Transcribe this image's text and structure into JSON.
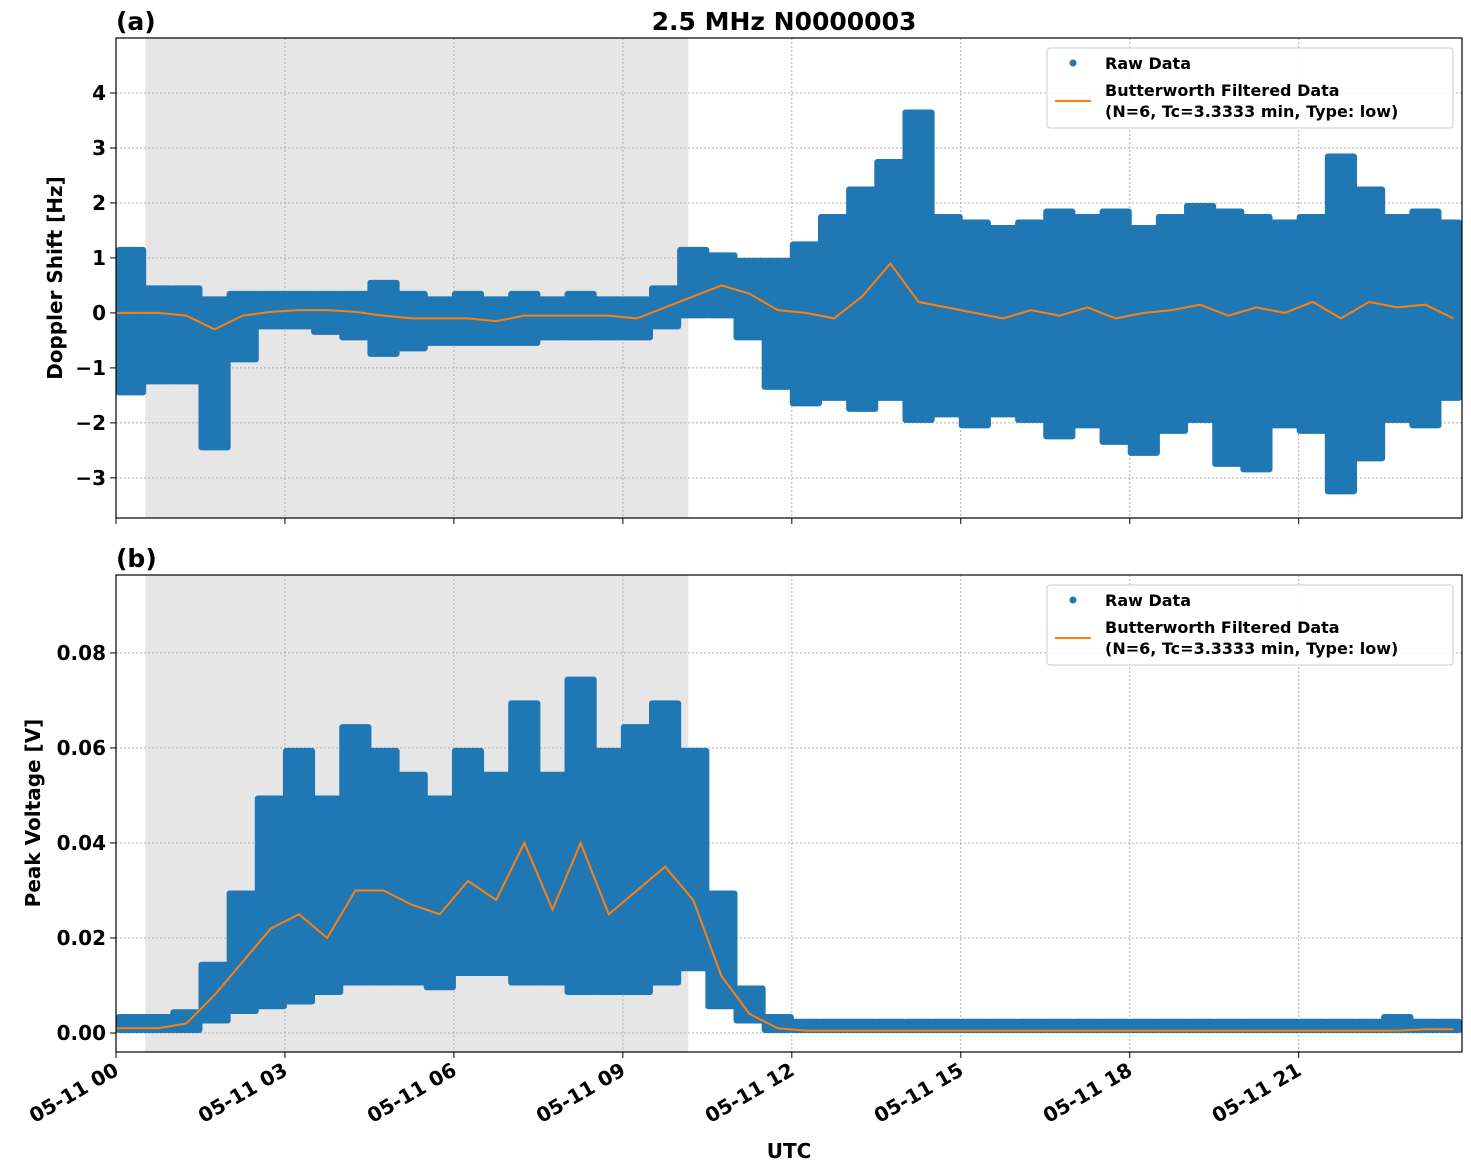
{
  "title": "2.5 MHz N0000003",
  "colors": {
    "raw": "#1f77b4",
    "filtered": "#ff7f0e",
    "shade": "#e6e6e6"
  },
  "chart_data": [
    {
      "type": "scatter",
      "panel_label": "(a)",
      "ylabel": "Doppler Shift [Hz]",
      "xlabel": "",
      "ylim": [
        -3.73,
        5.0
      ],
      "yticks": [
        -3,
        -2,
        -1,
        0,
        1,
        2,
        3,
        4
      ],
      "ytick_labels": [
        "−3",
        "−2",
        "−1",
        "0",
        "1",
        "2",
        "3",
        "4"
      ],
      "xlim_hours": [
        0,
        23.9
      ],
      "xticks_hours": [
        0,
        3,
        6,
        9,
        12,
        15,
        18,
        21
      ],
      "shaded_interval_hours": [
        0.52,
        10.16
      ],
      "grid": true,
      "legend_placement": "top-right",
      "legend": [
        "Raw Data",
        "Butterworth Filtered Data\n(N=6, Tc=3.3333 min, Type: low)"
      ],
      "hours": [
        0,
        0.5,
        1,
        1.5,
        2,
        2.5,
        3,
        3.5,
        4,
        4.5,
        5,
        5.5,
        6,
        6.5,
        7,
        7.5,
        8,
        8.5,
        9,
        9.5,
        10,
        10.5,
        11,
        11.5,
        12,
        12.5,
        13,
        13.5,
        14,
        14.5,
        15,
        15.5,
        16,
        16.5,
        17,
        17.5,
        18,
        18.5,
        19,
        19.5,
        20,
        20.5,
        21,
        21.5,
        22,
        22.5,
        23,
        23.5
      ],
      "series": [
        {
          "name": "Raw Data",
          "kind": "envelope",
          "min": [
            -1.5,
            -1.3,
            -1.3,
            -2.5,
            -0.9,
            -0.3,
            -0.3,
            -0.4,
            -0.5,
            -0.8,
            -0.7,
            -0.6,
            -0.6,
            -0.6,
            -0.6,
            -0.5,
            -0.5,
            -0.5,
            -0.5,
            -0.3,
            -0.1,
            -0.1,
            -0.5,
            -1.4,
            -1.7,
            -1.6,
            -1.8,
            -1.6,
            -2.0,
            -1.9,
            -2.1,
            -1.9,
            -2.0,
            -2.3,
            -2.1,
            -2.4,
            -2.6,
            -2.2,
            -2.0,
            -2.8,
            -2.9,
            -2.1,
            -2.2,
            -3.3,
            -2.7,
            -2.0,
            -2.1,
            -1.6
          ],
          "max": [
            1.2,
            0.5,
            0.5,
            0.3,
            0.4,
            0.4,
            0.4,
            0.4,
            0.4,
            0.6,
            0.4,
            0.3,
            0.4,
            0.3,
            0.4,
            0.3,
            0.4,
            0.3,
            0.3,
            0.5,
            1.2,
            1.1,
            1.0,
            1.0,
            1.3,
            1.8,
            2.3,
            2.8,
            3.7,
            1.8,
            1.7,
            1.6,
            1.7,
            1.9,
            1.8,
            1.9,
            1.6,
            1.8,
            2.0,
            1.9,
            1.8,
            1.7,
            1.8,
            2.9,
            2.3,
            1.8,
            1.9,
            1.7
          ]
        },
        {
          "name": "Butterworth Filtered Data (N=6, Tc=3.3333 min, Type: low)",
          "kind": "line",
          "values": [
            0,
            0,
            -0.05,
            -0.3,
            -0.05,
            0.02,
            0.05,
            0.05,
            0.02,
            -0.05,
            -0.1,
            -0.1,
            -0.1,
            -0.15,
            -0.05,
            -0.05,
            -0.05,
            -0.05,
            -0.1,
            0.1,
            0.3,
            0.5,
            0.35,
            0.05,
            0,
            -0.1,
            0.3,
            0.9,
            0.2,
            0.1,
            0.0,
            -0.1,
            0.05,
            -0.05,
            0.1,
            -0.1,
            0.0,
            0.05,
            0.15,
            -0.05,
            0.1,
            0.0,
            0.2,
            -0.1,
            0.2,
            0.1,
            0.15,
            -0.1
          ]
        }
      ]
    },
    {
      "type": "scatter",
      "panel_label": "(b)",
      "ylabel": "Peak Voltage [V]",
      "xlabel": "UTC",
      "ylim": [
        -0.004,
        0.0964
      ],
      "yticks": [
        0,
        0.02,
        0.04,
        0.06,
        0.08
      ],
      "ytick_labels": [
        "0.00",
        "0.02",
        "0.04",
        "0.06",
        "0.08"
      ],
      "xlim_hours": [
        0,
        23.9
      ],
      "xticks_hours": [
        0,
        3,
        6,
        9,
        12,
        15,
        18,
        21
      ],
      "xtick_labels": [
        "05-11 00",
        "05-11 03",
        "05-11 06",
        "05-11 09",
        "05-11 12",
        "05-11 15",
        "05-11 18",
        "05-11 21"
      ],
      "shaded_interval_hours": [
        0.52,
        10.16
      ],
      "grid": true,
      "legend_placement": "top-right",
      "legend": [
        "Raw Data",
        "Butterworth Filtered Data\n(N=6, Tc=3.3333 min, Type: low)"
      ],
      "hours": [
        0,
        0.5,
        1,
        1.5,
        2,
        2.5,
        3,
        3.5,
        4,
        4.5,
        5,
        5.5,
        6,
        6.5,
        7,
        7.5,
        8,
        8.5,
        9,
        9.5,
        10,
        10.5,
        11,
        11.5,
        12,
        12.5,
        13,
        13.5,
        14,
        14.5,
        15,
        15.5,
        16,
        16.5,
        17,
        17.5,
        18,
        18.5,
        19,
        19.5,
        20,
        20.5,
        21,
        21.5,
        22,
        22.5,
        23,
        23.5
      ],
      "series": [
        {
          "name": "Raw Data",
          "kind": "envelope",
          "min": [
            0,
            0,
            0,
            0.002,
            0.004,
            0.005,
            0.006,
            0.008,
            0.01,
            0.01,
            0.01,
            0.009,
            0.012,
            0.012,
            0.01,
            0.01,
            0.008,
            0.008,
            0.008,
            0.01,
            0.013,
            0.005,
            0.002,
            0,
            0,
            0,
            0,
            0,
            0,
            0,
            0,
            0,
            0,
            0,
            0,
            0,
            0,
            0,
            0,
            0,
            0,
            0,
            0,
            0,
            0,
            0,
            0,
            0
          ],
          "max": [
            0.004,
            0.004,
            0.005,
            0.015,
            0.03,
            0.05,
            0.06,
            0.05,
            0.065,
            0.06,
            0.055,
            0.05,
            0.06,
            0.055,
            0.07,
            0.055,
            0.075,
            0.06,
            0.065,
            0.07,
            0.06,
            0.03,
            0.01,
            0.004,
            0.003,
            0.003,
            0.003,
            0.003,
            0.003,
            0.003,
            0.003,
            0.003,
            0.003,
            0.003,
            0.003,
            0.003,
            0.003,
            0.003,
            0.003,
            0.003,
            0.003,
            0.003,
            0.003,
            0.003,
            0.003,
            0.004,
            0.003,
            0.003
          ]
        },
        {
          "name": "Butterworth Filtered Data (N=6, Tc=3.3333 min, Type: low)",
          "kind": "line",
          "values": [
            0.001,
            0.001,
            0.002,
            0.008,
            0.015,
            0.022,
            0.025,
            0.02,
            0.03,
            0.03,
            0.027,
            0.025,
            0.032,
            0.028,
            0.04,
            0.026,
            0.04,
            0.025,
            0.03,
            0.035,
            0.028,
            0.012,
            0.004,
            0.001,
            0.0005,
            0.0005,
            0.0005,
            0.0005,
            0.0005,
            0.0005,
            0.0005,
            0.0005,
            0.0005,
            0.0005,
            0.0005,
            0.0005,
            0.0005,
            0.0005,
            0.0005,
            0.0005,
            0.0005,
            0.0005,
            0.0005,
            0.0005,
            0.0005,
            0.0005,
            0.0008,
            0.0008
          ]
        }
      ]
    }
  ]
}
